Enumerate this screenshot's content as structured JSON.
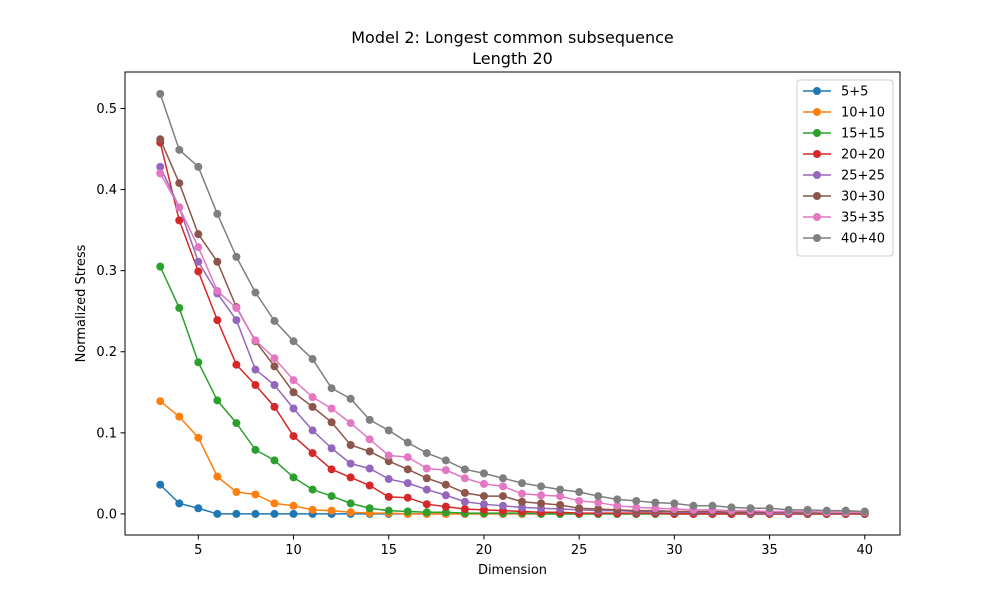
{
  "chart_data": {
    "type": "line",
    "title": "Model 2: Longest common subsequence",
    "subtitle": "Length 20",
    "xlabel": "Dimension",
    "ylabel": "Normalized Stress",
    "xlim": [
      1.15,
      41.85
    ],
    "ylim": [
      -0.026,
      0.545
    ],
    "xticks": [
      5,
      10,
      15,
      20,
      25,
      30,
      35,
      40
    ],
    "yticks": [
      0.0,
      0.1,
      0.2,
      0.3,
      0.4,
      0.5
    ],
    "xtick_labels": [
      "5",
      "10",
      "15",
      "20",
      "25",
      "30",
      "35",
      "40"
    ],
    "ytick_labels": [
      "0.0",
      "0.1",
      "0.2",
      "0.3",
      "0.4",
      "0.5"
    ],
    "grid": false,
    "legend_position": "upper right",
    "x": [
      3,
      4,
      5,
      6,
      7,
      8,
      9,
      10,
      11,
      12,
      13,
      14,
      15,
      16,
      17,
      18,
      19,
      20,
      21,
      22,
      23,
      24,
      25,
      26,
      27,
      28,
      29,
      30,
      31,
      32,
      33,
      34,
      35,
      36,
      37,
      38,
      39,
      40
    ],
    "series": [
      {
        "name": "5+5",
        "color": "#1f77b4",
        "values": [
          0.036,
          0.013,
          0.007,
          0,
          0,
          0,
          0,
          0,
          0,
          0,
          0,
          0,
          0,
          0,
          0,
          0,
          0,
          0,
          0,
          0,
          0,
          0,
          0,
          0,
          0,
          0,
          0,
          0,
          0,
          0,
          0,
          0,
          0,
          0,
          0,
          0,
          0,
          0
        ]
      },
      {
        "name": "10+10",
        "color": "#ff7f0e",
        "values": [
          0.139,
          0.12,
          0.094,
          0.046,
          0.027,
          0.024,
          0.013,
          0.01,
          0.005,
          0.004,
          0.002,
          0.001,
          0.001,
          0,
          0,
          0,
          0,
          0,
          0,
          0,
          0,
          0,
          0,
          0,
          0,
          0,
          0,
          0,
          0,
          0,
          0,
          0,
          0,
          0,
          0,
          0,
          0,
          0
        ]
      },
      {
        "name": "15+15",
        "color": "#2ca02c",
        "values": [
          0.305,
          0.254,
          0.187,
          0.14,
          0.112,
          0.079,
          0.066,
          0.045,
          0.03,
          0.022,
          0.013,
          0.007,
          0.004,
          0.003,
          0.002,
          0.002,
          0.001,
          0.001,
          0.001,
          0.001,
          0,
          0,
          0,
          0,
          0,
          0,
          0,
          0,
          0,
          0,
          0,
          0,
          0,
          0,
          0,
          0,
          0,
          0
        ]
      },
      {
        "name": "20+20",
        "color": "#d62728",
        "values": [
          0.458,
          0.362,
          0.299,
          0.239,
          0.184,
          0.159,
          0.132,
          0.096,
          0.075,
          0.055,
          0.045,
          0.035,
          0.021,
          0.02,
          0.012,
          0.009,
          0.006,
          0.005,
          0.004,
          0.003,
          0.002,
          0.002,
          0.001,
          0.001,
          0.001,
          0.001,
          0.001,
          0,
          0,
          0,
          0,
          0,
          0,
          0,
          0,
          0,
          0,
          0
        ]
      },
      {
        "name": "25+25",
        "color": "#9467bd",
        "values": [
          0.428,
          0.378,
          0.311,
          0.272,
          0.239,
          0.178,
          0.159,
          0.13,
          0.103,
          0.081,
          0.062,
          0.056,
          0.043,
          0.038,
          0.03,
          0.023,
          0.015,
          0.012,
          0.01,
          0.008,
          0.007,
          0.006,
          0.005,
          0.004,
          0.004,
          0.003,
          0.003,
          0.002,
          0.002,
          0.002,
          0.002,
          0.001,
          0.001,
          0.001,
          0.001,
          0.001,
          0.001,
          0.001
        ]
      },
      {
        "name": "30+30",
        "color": "#8c564b",
        "values": [
          0.462,
          0.408,
          0.345,
          0.311,
          0.255,
          0.213,
          0.182,
          0.15,
          0.132,
          0.113,
          0.085,
          0.077,
          0.065,
          0.055,
          0.044,
          0.036,
          0.026,
          0.022,
          0.022,
          0.015,
          0.013,
          0.011,
          0.007,
          0.006,
          0.005,
          0.004,
          0.004,
          0.003,
          0.003,
          0.003,
          0.002,
          0.002,
          0.002,
          0.002,
          0.001,
          0.001,
          0.001,
          0.001
        ]
      },
      {
        "name": "35+35",
        "color": "#e377c2",
        "values": [
          0.42,
          0.378,
          0.329,
          0.275,
          0.254,
          0.214,
          0.192,
          0.165,
          0.144,
          0.13,
          0.112,
          0.092,
          0.072,
          0.07,
          0.056,
          0.054,
          0.044,
          0.037,
          0.034,
          0.025,
          0.023,
          0.022,
          0.016,
          0.014,
          0.01,
          0.008,
          0.007,
          0.006,
          0.005,
          0.005,
          0.004,
          0.004,
          0.003,
          0.003,
          0.003,
          0.002,
          0.002,
          0.002
        ]
      },
      {
        "name": "40+40",
        "color": "#7f7f7f",
        "values": [
          0.518,
          0.449,
          0.428,
          0.37,
          0.317,
          0.273,
          0.238,
          0.213,
          0.191,
          0.155,
          0.142,
          0.116,
          0.103,
          0.088,
          0.075,
          0.066,
          0.055,
          0.05,
          0.044,
          0.038,
          0.034,
          0.03,
          0.027,
          0.022,
          0.018,
          0.016,
          0.014,
          0.013,
          0.01,
          0.01,
          0.008,
          0.007,
          0.007,
          0.005,
          0.005,
          0.004,
          0.004,
          0.003
        ]
      }
    ]
  }
}
